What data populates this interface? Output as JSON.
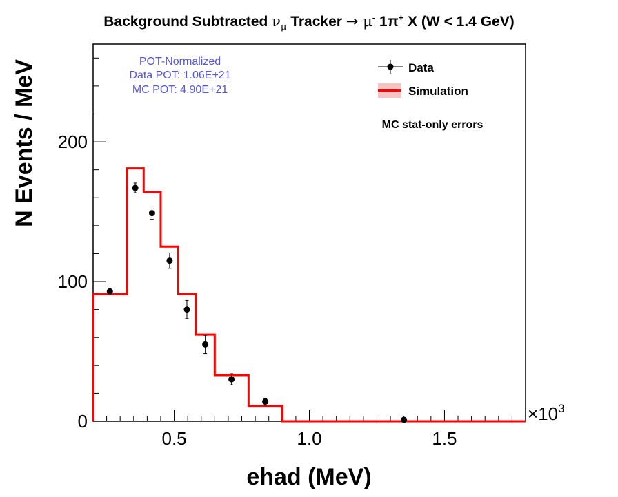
{
  "chart_data": {
    "type": "histogram-with-points",
    "title": {
      "pre": "Background Subtracted ",
      "nu": "ν",
      "nu_sub": "μ",
      "mid": " Tracker ",
      "arrow": "→",
      "mu": " μ",
      "mu_sup": "-",
      "pion": " 1π",
      "pion_sup": "+",
      "post": " X  (W < 1.4 GeV)"
    },
    "xlabel": "ehad (MeV)",
    "ylabel": "N Events / MeV",
    "x_multiplier": "×10",
    "x_multiplier_exp": "3",
    "xlim": [
      200,
      1800
    ],
    "ylim": [
      0,
      270
    ],
    "x_ticks": [
      {
        "value": 500,
        "label": "0.5"
      },
      {
        "value": 1000,
        "label": "1.0"
      },
      {
        "value": 1500,
        "label": "1.5"
      }
    ],
    "y_ticks": [
      {
        "value": 0,
        "label": "0"
      },
      {
        "value": 100,
        "label": "100"
      },
      {
        "value": 200,
        "label": "200"
      }
    ],
    "pot_info": [
      "POT-Normalized",
      "Data POT: 1.06E+21",
      "MC POT: 4.90E+21"
    ],
    "legend": [
      {
        "label": "Data",
        "kind": "marker"
      },
      {
        "label": "Simulation",
        "kind": "line"
      }
    ],
    "note": "MC stat-only errors",
    "simulation": {
      "name": "Simulation",
      "color": "#ff0000",
      "edges": [
        200,
        325,
        387,
        450,
        515,
        580,
        650,
        775,
        900,
        1800
      ],
      "values": [
        91,
        181,
        164,
        125,
        91,
        62,
        33,
        11,
        0
      ]
    },
    "data": {
      "name": "Data",
      "color": "#000000",
      "points": [
        {
          "x": 262,
          "y": 93,
          "err": 1.5
        },
        {
          "x": 356,
          "y": 167,
          "err": 3.5
        },
        {
          "x": 418,
          "y": 149,
          "err": 4.5
        },
        {
          "x": 483,
          "y": 115,
          "err": 5.5
        },
        {
          "x": 547,
          "y": 80,
          "err": 6.5
        },
        {
          "x": 615,
          "y": 55,
          "err": 6.5
        },
        {
          "x": 712,
          "y": 30,
          "err": 4
        },
        {
          "x": 837,
          "y": 14,
          "err": 2.5
        },
        {
          "x": 1350,
          "y": 1,
          "err": 1
        }
      ]
    }
  }
}
